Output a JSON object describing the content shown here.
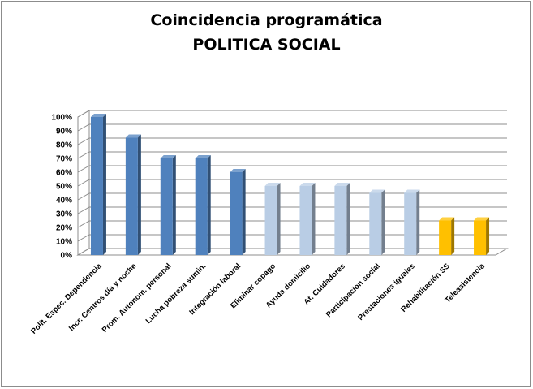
{
  "chart_data": {
    "type": "bar",
    "title": "Coincidencia programática",
    "subtitle": "POLITICA SOCIAL",
    "categories": [
      "Polít. Espec. Dependencia",
      "Incr. Centros día y noche",
      "Prom. Autonom. personal",
      "Lucha pobreza sumin.",
      "Integración laboral",
      "Eliminar copago",
      "Ayuda domicilio",
      "At. Cuidadores",
      "Participación social",
      "Prestaciones iguales",
      "Rehabilitación SS",
      "Teleasistencia"
    ],
    "values": [
      100,
      85,
      70,
      70,
      60,
      50,
      50,
      50,
      45,
      45,
      25,
      25
    ],
    "bar_colors": [
      "#4f81bd",
      "#4f81bd",
      "#4f81bd",
      "#4f81bd",
      "#4f81bd",
      "#b9cde5",
      "#b9cde5",
      "#b9cde5",
      "#b9cde5",
      "#b9cde5",
      "#ffc000",
      "#ffc000"
    ],
    "yticks": [
      "0%",
      "10%",
      "20%",
      "30%",
      "40%",
      "50%",
      "60%",
      "70%",
      "80%",
      "90%",
      "100%"
    ],
    "ylim": [
      0,
      100
    ],
    "grid": true,
    "legend": "none",
    "style": "3d-column"
  }
}
